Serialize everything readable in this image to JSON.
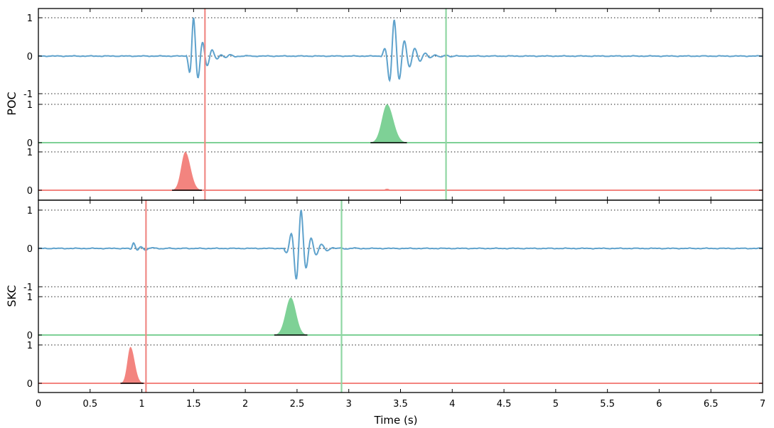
{
  "chart_data": {
    "type": "line",
    "xlabel": "Time (s)",
    "xlim": [
      0,
      7
    ],
    "x_ticks": [
      0,
      0.5,
      1,
      1.5,
      2,
      2.5,
      3,
      3.5,
      4,
      4.5,
      5,
      5.5,
      6,
      6.5,
      7
    ],
    "x_tick_labels": [
      "0",
      "0.5",
      "1",
      "1.5",
      "2",
      "2.5",
      "3",
      "3.5",
      "4",
      "4.5",
      "5",
      "5.5",
      "6",
      "6.5",
      "7"
    ],
    "colors": {
      "waveform": "#5fa2cc",
      "s_pick": "#8fd6a3",
      "s_prob": "#7ed196",
      "p_pick": "#f08a86",
      "p_prob": "#f3847f"
    },
    "stations": [
      {
        "name": "POC",
        "waveform_ylim": [
          -1,
          1
        ],
        "waveform_yticks": [
          "1",
          "0",
          "-1"
        ],
        "p_prob_yticks": [
          "1",
          "0"
        ],
        "s_prob_yticks": [
          "1",
          "0"
        ],
        "p_pick": 1.61,
        "s_pick": 3.94,
        "p_prob": {
          "peak_time": 1.42,
          "peak": 1.0,
          "rise": 0.04,
          "fall": 0.05
        },
        "s_prob": {
          "peak_time": 3.37,
          "peak": 1.0,
          "rise": 0.05,
          "fall": 0.06
        },
        "p_prob_minor": {
          "peak_time": 3.37,
          "peak": 0.04
        },
        "waveform_events": [
          {
            "onset": 1.43,
            "peak_time": 1.5,
            "amp": 1.0,
            "period": 0.09,
            "decay": 0.09
          },
          {
            "onset": 3.32,
            "peak_time": 3.44,
            "amp": 0.95,
            "period": 0.1,
            "decay": 0.12
          }
        ]
      },
      {
        "name": "SKC",
        "waveform_ylim": [
          -1,
          1
        ],
        "waveform_yticks": [
          "1",
          "0",
          "-1"
        ],
        "p_prob_yticks": [
          "1",
          "0"
        ],
        "s_prob_yticks": [
          "1",
          "0"
        ],
        "p_pick": 1.04,
        "s_pick": 2.93,
        "p_prob": {
          "peak_time": 0.89,
          "peak": 0.95,
          "rise": 0.03,
          "fall": 0.04
        },
        "s_prob": {
          "peak_time": 2.44,
          "peak": 0.98,
          "rise": 0.05,
          "fall": 0.05
        },
        "waveform_events": [
          {
            "onset": 0.88,
            "peak_time": 0.92,
            "amp": 0.15,
            "period": 0.08,
            "decay": 0.06
          },
          {
            "onset": 2.38,
            "peak_time": 2.54,
            "amp": 1.0,
            "period": 0.1,
            "decay": 0.08
          }
        ]
      }
    ]
  }
}
